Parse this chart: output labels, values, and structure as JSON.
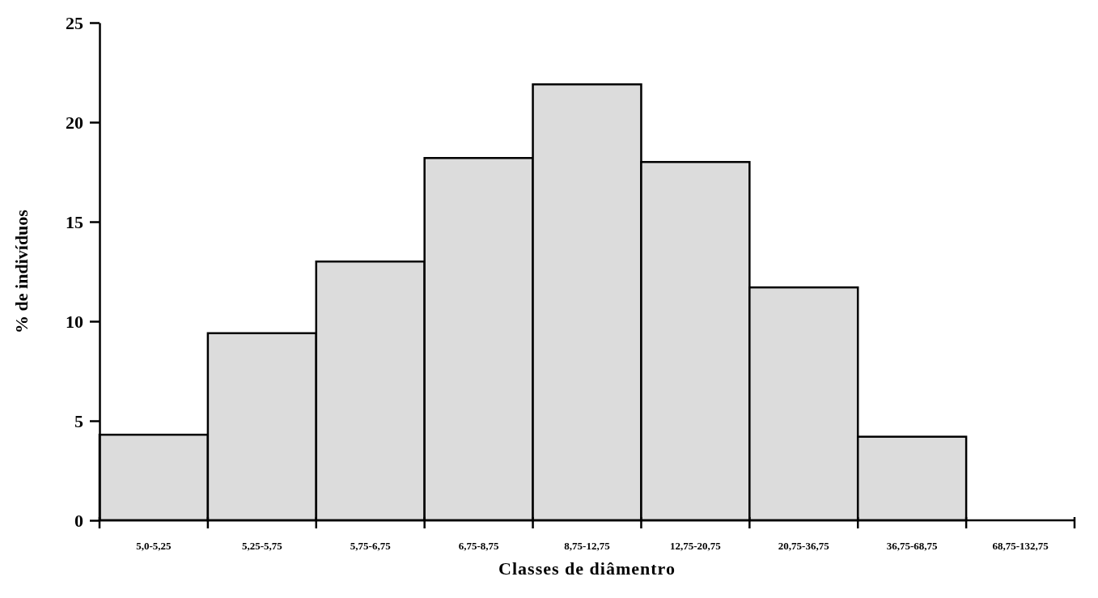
{
  "chart_data": {
    "type": "bar",
    "xlabel": "Classes de diâmentro",
    "ylabel": "% de indivíduos",
    "categories": [
      "5,0-5,25",
      "5,25-5,75",
      "5,75-6,75",
      "6,75-8,75",
      "8,75-12,75",
      "12,75-20,75",
      "20,75-36,75",
      "36,75-68,75",
      "68,75-132,75"
    ],
    "values": [
      4.3,
      9.4,
      13.0,
      18.2,
      21.9,
      18.0,
      11.7,
      4.2,
      0
    ],
    "color": "#dcdcdc",
    "ylim": [
      0,
      25
    ],
    "yticks": [
      0,
      5,
      10,
      15,
      20,
      25
    ],
    "grid": false,
    "legend": false
  }
}
